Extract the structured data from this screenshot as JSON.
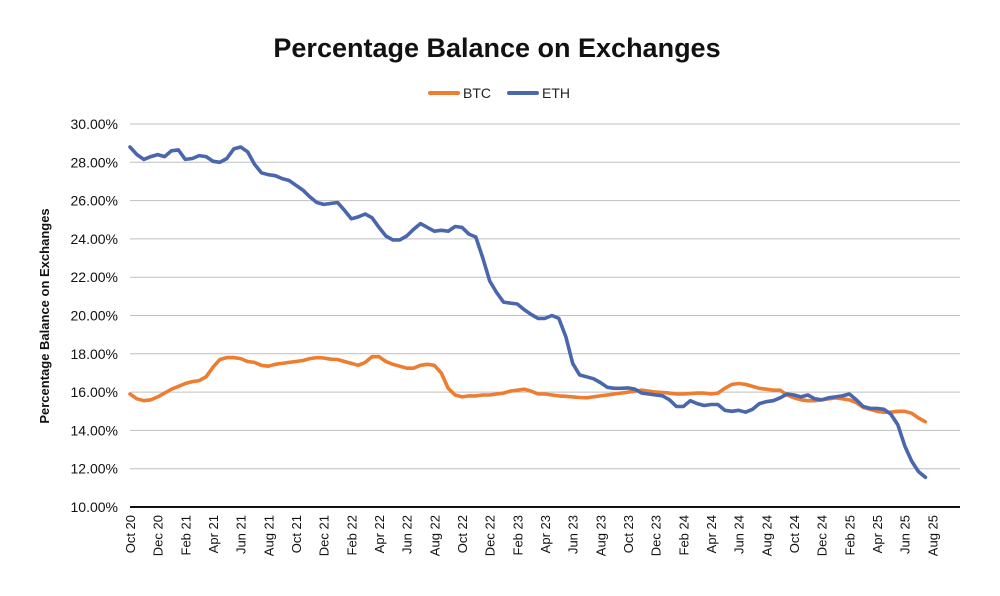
{
  "chart_data": {
    "type": "line",
    "title": "Percentage Balance on Exchanges",
    "ylabel": "Percentage Balance on Exchanges",
    "xlabel": "",
    "ylim": [
      10,
      30
    ],
    "yticks": [
      "10.00%",
      "12.00%",
      "14.00%",
      "16.00%",
      "18.00%",
      "20.00%",
      "22.00%",
      "24.00%",
      "26.00%",
      "28.00%",
      "30.00%"
    ],
    "x_ticks": [
      "Oct 20",
      "Dec 20",
      "Feb 21",
      "Apr 21",
      "Jun 21",
      "Aug 21",
      "Oct 21",
      "Dec 21",
      "Feb 22",
      "Apr 22",
      "Jun 22",
      "Aug 22",
      "Oct 22",
      "Dec 22",
      "Feb 23",
      "Apr 23",
      "Jun 23",
      "Aug 23",
      "Oct 23",
      "Dec 23",
      "Feb 24",
      "Apr 24",
      "Jun 24",
      "Aug 24",
      "Oct 24",
      "Dec 24",
      "Feb 25",
      "Apr 25",
      "Jun 25",
      "Aug 25"
    ],
    "x_range_months": [
      0,
      60
    ],
    "legend_position": "top-center",
    "series": [
      {
        "name": "BTC",
        "color": "#ED7D31",
        "points": [
          [
            0,
            15.9
          ],
          [
            0.5,
            15.65
          ],
          [
            1,
            15.55
          ],
          [
            1.5,
            15.6
          ],
          [
            2,
            15.75
          ],
          [
            2.5,
            15.95
          ],
          [
            3,
            16.15
          ],
          [
            3.5,
            16.3
          ],
          [
            4,
            16.45
          ],
          [
            4.5,
            16.55
          ],
          [
            5,
            16.6
          ],
          [
            5.5,
            16.8
          ],
          [
            6,
            17.3
          ],
          [
            6.5,
            17.7
          ],
          [
            7,
            17.8
          ],
          [
            7.5,
            17.8
          ],
          [
            8,
            17.75
          ],
          [
            8.5,
            17.6
          ],
          [
            9,
            17.55
          ],
          [
            9.5,
            17.4
          ],
          [
            10,
            17.35
          ],
          [
            10.5,
            17.45
          ],
          [
            11,
            17.5
          ],
          [
            11.5,
            17.55
          ],
          [
            12,
            17.6
          ],
          [
            12.5,
            17.65
          ],
          [
            13,
            17.75
          ],
          [
            13.5,
            17.8
          ],
          [
            14,
            17.78
          ],
          [
            14.5,
            17.72
          ],
          [
            15,
            17.7
          ],
          [
            15.5,
            17.6
          ],
          [
            16,
            17.5
          ],
          [
            16.5,
            17.4
          ],
          [
            17,
            17.55
          ],
          [
            17.5,
            17.85
          ],
          [
            18,
            17.85
          ],
          [
            18.5,
            17.6
          ],
          [
            19,
            17.45
          ],
          [
            19.5,
            17.35
          ],
          [
            20,
            17.25
          ],
          [
            20.5,
            17.25
          ],
          [
            21,
            17.4
          ],
          [
            21.5,
            17.45
          ],
          [
            22,
            17.4
          ],
          [
            22.5,
            17.0
          ],
          [
            23,
            16.2
          ],
          [
            23.5,
            15.85
          ],
          [
            24,
            15.75
          ],
          [
            24.5,
            15.8
          ],
          [
            25,
            15.8
          ],
          [
            25.5,
            15.85
          ],
          [
            26,
            15.85
          ],
          [
            26.5,
            15.9
          ],
          [
            27,
            15.95
          ],
          [
            27.5,
            16.05
          ],
          [
            28,
            16.1
          ],
          [
            28.5,
            16.15
          ],
          [
            29,
            16.05
          ],
          [
            29.5,
            15.9
          ],
          [
            30,
            15.9
          ],
          [
            30.5,
            15.85
          ],
          [
            31,
            15.8
          ],
          [
            31.5,
            15.78
          ],
          [
            32,
            15.75
          ],
          [
            32.5,
            15.72
          ],
          [
            33,
            15.7
          ],
          [
            33.5,
            15.75
          ],
          [
            34,
            15.8
          ],
          [
            34.5,
            15.85
          ],
          [
            35,
            15.9
          ],
          [
            35.5,
            15.95
          ],
          [
            36,
            16.0
          ],
          [
            36.5,
            16.05
          ],
          [
            37,
            16.1
          ],
          [
            37.5,
            16.05
          ],
          [
            38,
            16.0
          ],
          [
            38.5,
            15.98
          ],
          [
            39,
            15.95
          ],
          [
            39.5,
            15.9
          ],
          [
            40,
            15.9
          ],
          [
            40.5,
            15.92
          ],
          [
            41,
            15.95
          ],
          [
            41.5,
            15.95
          ],
          [
            42,
            15.9
          ],
          [
            42.5,
            15.95
          ],
          [
            43,
            16.2
          ],
          [
            43.5,
            16.4
          ],
          [
            44,
            16.45
          ],
          [
            44.5,
            16.4
          ],
          [
            45,
            16.3
          ],
          [
            45.5,
            16.2
          ],
          [
            46,
            16.15
          ],
          [
            46.5,
            16.1
          ],
          [
            47,
            16.1
          ],
          [
            47.5,
            15.85
          ],
          [
            48,
            15.7
          ],
          [
            48.5,
            15.6
          ],
          [
            49,
            15.55
          ],
          [
            49.5,
            15.55
          ],
          [
            50,
            15.6
          ],
          [
            50.5,
            15.65
          ],
          [
            51,
            15.7
          ],
          [
            51.5,
            15.65
          ],
          [
            52,
            15.6
          ],
          [
            52.5,
            15.45
          ],
          [
            53,
            15.2
          ],
          [
            53.5,
            15.1
          ],
          [
            54,
            15.0
          ],
          [
            54.5,
            14.95
          ],
          [
            55,
            14.95
          ],
          [
            55.5,
            15.0
          ],
          [
            56,
            15.0
          ],
          [
            56.5,
            14.9
          ],
          [
            57,
            14.65
          ],
          [
            57.5,
            14.45
          ]
        ]
      },
      {
        "name": "ETH",
        "color": "#4A66AC",
        "points": [
          [
            0,
            28.8
          ],
          [
            0.5,
            28.4
          ],
          [
            1,
            28.15
          ],
          [
            1.5,
            28.3
          ],
          [
            2,
            28.4
          ],
          [
            2.5,
            28.3
          ],
          [
            3,
            28.6
          ],
          [
            3.5,
            28.65
          ],
          [
            4,
            28.15
          ],
          [
            4.5,
            28.2
          ],
          [
            5,
            28.35
          ],
          [
            5.5,
            28.3
          ],
          [
            6,
            28.05
          ],
          [
            6.5,
            28.0
          ],
          [
            7,
            28.2
          ],
          [
            7.5,
            28.7
          ],
          [
            8,
            28.8
          ],
          [
            8.5,
            28.55
          ],
          [
            9,
            27.9
          ],
          [
            9.5,
            27.45
          ],
          [
            10,
            27.35
          ],
          [
            10.5,
            27.3
          ],
          [
            11,
            27.15
          ],
          [
            11.5,
            27.05
          ],
          [
            12,
            26.8
          ],
          [
            12.5,
            26.55
          ],
          [
            13,
            26.2
          ],
          [
            13.5,
            25.9
          ],
          [
            14,
            25.8
          ],
          [
            14.5,
            25.85
          ],
          [
            15,
            25.9
          ],
          [
            15.5,
            25.5
          ],
          [
            16,
            25.05
          ],
          [
            16.5,
            25.15
          ],
          [
            17,
            25.3
          ],
          [
            17.5,
            25.1
          ],
          [
            18,
            24.6
          ],
          [
            18.5,
            24.15
          ],
          [
            19,
            23.95
          ],
          [
            19.5,
            23.95
          ],
          [
            20,
            24.15
          ],
          [
            20.5,
            24.5
          ],
          [
            21,
            24.8
          ],
          [
            21.5,
            24.6
          ],
          [
            22,
            24.4
          ],
          [
            22.5,
            24.45
          ],
          [
            23,
            24.4
          ],
          [
            23.5,
            24.65
          ],
          [
            24,
            24.6
          ],
          [
            24.5,
            24.25
          ],
          [
            25,
            24.1
          ],
          [
            25.5,
            23.0
          ],
          [
            26,
            21.8
          ],
          [
            26.5,
            21.2
          ],
          [
            27,
            20.7
          ],
          [
            27.5,
            20.65
          ],
          [
            28,
            20.6
          ],
          [
            28.5,
            20.3
          ],
          [
            29,
            20.05
          ],
          [
            29.5,
            19.85
          ],
          [
            30,
            19.85
          ],
          [
            30.5,
            20.0
          ],
          [
            31,
            19.85
          ],
          [
            31.5,
            18.9
          ],
          [
            32,
            17.5
          ],
          [
            32.5,
            16.9
          ],
          [
            33,
            16.8
          ],
          [
            33.5,
            16.7
          ],
          [
            34,
            16.5
          ],
          [
            34.5,
            16.25
          ],
          [
            35,
            16.2
          ],
          [
            35.5,
            16.2
          ],
          [
            36,
            16.22
          ],
          [
            36.5,
            16.15
          ],
          [
            37,
            15.95
          ],
          [
            37.5,
            15.9
          ],
          [
            38,
            15.85
          ],
          [
            38.5,
            15.8
          ],
          [
            39,
            15.6
          ],
          [
            39.5,
            15.25
          ],
          [
            40,
            15.25
          ],
          [
            40.5,
            15.55
          ],
          [
            41,
            15.4
          ],
          [
            41.5,
            15.3
          ],
          [
            42,
            15.35
          ],
          [
            42.5,
            15.35
          ],
          [
            43,
            15.05
          ],
          [
            43.5,
            15.0
          ],
          [
            44,
            15.05
          ],
          [
            44.5,
            14.95
          ],
          [
            45,
            15.1
          ],
          [
            45.5,
            15.4
          ],
          [
            46,
            15.5
          ],
          [
            46.5,
            15.55
          ],
          [
            47,
            15.7
          ],
          [
            47.5,
            15.9
          ],
          [
            48,
            15.85
          ],
          [
            48.5,
            15.75
          ],
          [
            49,
            15.85
          ],
          [
            49.5,
            15.65
          ],
          [
            50,
            15.6
          ],
          [
            50.5,
            15.7
          ],
          [
            51,
            15.75
          ],
          [
            51.5,
            15.8
          ],
          [
            52,
            15.9
          ],
          [
            52.5,
            15.6
          ],
          [
            53,
            15.25
          ],
          [
            53.5,
            15.15
          ],
          [
            54,
            15.15
          ],
          [
            54.5,
            15.1
          ],
          [
            55,
            14.85
          ],
          [
            55.5,
            14.3
          ],
          [
            56,
            13.2
          ],
          [
            56.5,
            12.4
          ],
          [
            57,
            11.85
          ],
          [
            57.5,
            11.55
          ]
        ]
      }
    ]
  }
}
